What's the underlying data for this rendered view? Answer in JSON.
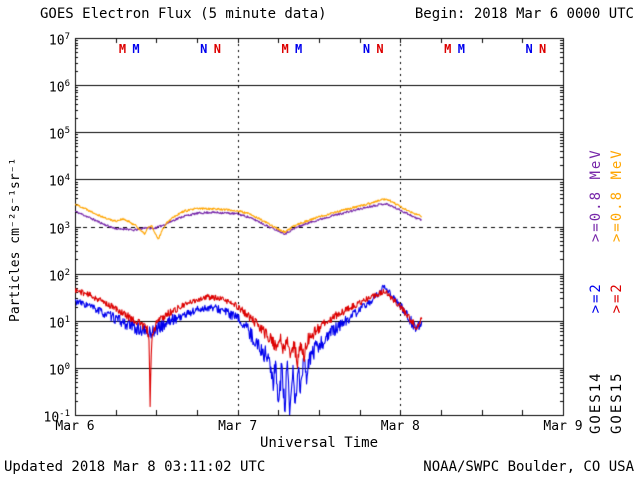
{
  "header": {
    "begin_label": "Begin: 2018 Mar 6 0000 UTC"
  },
  "footer": {
    "updated_label": "Updated 2018 Mar 8 03:11:02 UTC",
    "credit_label": "NOAA/SWPC Boulder, CO USA"
  },
  "legend": {
    "goes14": {
      "sat": "GOES14",
      "e2": ">=2",
      "e08": ">=0.8 MeV",
      "color_sat": "#000000",
      "color_e2": "#0000EE",
      "color_e08": "#7626A9"
    },
    "goes15": {
      "sat": "GOES15",
      "e2": ">=2",
      "e08": ">=0.8 MeV",
      "color_sat": "#000000",
      "color_e2": "#DD0000",
      "color_e08": "#FFA500"
    }
  },
  "chart_data": {
    "type": "line",
    "title": "GOES Electron Flux (5 minute data)",
    "xlabel": "Universal Time",
    "ylabel": "Particles cm⁻²s⁻¹sr⁻¹",
    "xlim_hours": [
      0,
      72
    ],
    "ylog_exp_range": [
      -1,
      7
    ],
    "x_ticks": [
      {
        "label": "Mar 6",
        "hour": 0
      },
      {
        "label": "Mar 7",
        "hour": 24
      },
      {
        "label": "Mar 8",
        "hour": 48
      },
      {
        "label": "Mar 9",
        "hour": 72
      }
    ],
    "y_tick_exponents": [
      7,
      6,
      5,
      4,
      3,
      2,
      1,
      0,
      -1
    ],
    "solid_gridline_exponents": [
      0,
      1,
      2,
      4,
      5,
      6
    ],
    "dashed_threshold_exponent": 3,
    "vertical_gridline_hours": [
      24,
      48
    ],
    "minor_tick_hours": 6,
    "grid": "on",
    "legend_position": "right-rotated",
    "top_markers": [
      {
        "label": "M",
        "hour": 7,
        "color": "#DD0000"
      },
      {
        "label": "M",
        "hour": 9,
        "color": "#0000EE"
      },
      {
        "label": "N",
        "hour": 19,
        "color": "#0000EE"
      },
      {
        "label": "N",
        "hour": 21,
        "color": "#DD0000"
      },
      {
        "label": "M",
        "hour": 31,
        "color": "#DD0000"
      },
      {
        "label": "M",
        "hour": 33,
        "color": "#0000EE"
      },
      {
        "label": "N",
        "hour": 43,
        "color": "#0000EE"
      },
      {
        "label": "N",
        "hour": 45,
        "color": "#DD0000"
      },
      {
        "label": "M",
        "hour": 55,
        "color": "#DD0000"
      },
      {
        "label": "M",
        "hour": 57,
        "color": "#0000EE"
      },
      {
        "label": "N",
        "hour": 67,
        "color": "#0000EE"
      },
      {
        "label": "N",
        "hour": 69,
        "color": "#DD0000"
      }
    ],
    "series": [
      {
        "name": "GOES14 >=0.8 MeV",
        "color": "#7626A9",
        "noise_amp": 0.022,
        "noise_boost": 0,
        "seed": 11,
        "anchors": [
          [
            0,
            2100
          ],
          [
            1.5,
            1700
          ],
          [
            3,
            1350
          ],
          [
            4.5,
            1080
          ],
          [
            5.5,
            950
          ],
          [
            6.5,
            870
          ],
          [
            7.5,
            900
          ],
          [
            8.5,
            830
          ],
          [
            9.5,
            880
          ],
          [
            10.5,
            950
          ],
          [
            11.5,
            900
          ],
          [
            12.5,
            1000
          ],
          [
            13.5,
            1150
          ],
          [
            14.5,
            1350
          ],
          [
            16,
            1650
          ],
          [
            18,
            1900
          ],
          [
            20,
            2000
          ],
          [
            22,
            1950
          ],
          [
            24,
            1850
          ],
          [
            25.5,
            1600
          ],
          [
            27,
            1300
          ],
          [
            28.5,
            1000
          ],
          [
            30,
            820
          ],
          [
            31,
            700
          ],
          [
            32,
            850
          ],
          [
            33,
            1000
          ],
          [
            34.5,
            1200
          ],
          [
            36,
            1400
          ],
          [
            38,
            1700
          ],
          [
            40,
            2000
          ],
          [
            42,
            2350
          ],
          [
            43.5,
            2650
          ],
          [
            45,
            2950
          ],
          [
            45.8,
            3050
          ],
          [
            46.5,
            2800
          ],
          [
            47.5,
            2400
          ],
          [
            48.5,
            2050
          ],
          [
            49.5,
            1750
          ],
          [
            50.3,
            1500
          ],
          [
            51.2,
            1400
          ]
        ]
      },
      {
        "name": "GOES15 >=0.8 MeV",
        "color": "#FFA500",
        "noise_amp": 0.022,
        "noise_boost": 0,
        "seed": 22,
        "anchors": [
          [
            0,
            3000
          ],
          [
            1.5,
            2400
          ],
          [
            3,
            1900
          ],
          [
            4.5,
            1500
          ],
          [
            6,
            1300
          ],
          [
            7,
            1450
          ],
          [
            8,
            1250
          ],
          [
            9,
            1050
          ],
          [
            9.8,
            780
          ],
          [
            10.3,
            700
          ],
          [
            10.8,
            950
          ],
          [
            11.3,
            1050
          ],
          [
            11.8,
            700
          ],
          [
            12.3,
            540
          ],
          [
            12.8,
            800
          ],
          [
            13.5,
            1200
          ],
          [
            14.5,
            1600
          ],
          [
            16,
            2100
          ],
          [
            18,
            2400
          ],
          [
            20,
            2400
          ],
          [
            22,
            2300
          ],
          [
            24,
            2150
          ],
          [
            25.5,
            1900
          ],
          [
            27,
            1500
          ],
          [
            28.5,
            1150
          ],
          [
            30,
            880
          ],
          [
            31,
            760
          ],
          [
            32,
            950
          ],
          [
            33,
            1150
          ],
          [
            34.5,
            1350
          ],
          [
            36,
            1600
          ],
          [
            38,
            1950
          ],
          [
            40,
            2300
          ],
          [
            42,
            2700
          ],
          [
            43.5,
            3100
          ],
          [
            45,
            3600
          ],
          [
            45.8,
            3850
          ],
          [
            46.5,
            3500
          ],
          [
            47.5,
            2900
          ],
          [
            48.5,
            2400
          ],
          [
            49.5,
            2050
          ],
          [
            50.3,
            1800
          ],
          [
            51.2,
            1650
          ]
        ]
      },
      {
        "name": "GOES14 >=2 MeV",
        "color": "#0000EE",
        "noise_amp": 0.07,
        "noise_boost": 1.6,
        "seed": 33,
        "anchors": [
          [
            0,
            26
          ],
          [
            2,
            21
          ],
          [
            4,
            15
          ],
          [
            6,
            11
          ],
          [
            8,
            8
          ],
          [
            10,
            6
          ],
          [
            11,
            5.5
          ],
          [
            12,
            6.5
          ],
          [
            13,
            8
          ],
          [
            14,
            10
          ],
          [
            16,
            13
          ],
          [
            18,
            17
          ],
          [
            19.5,
            19
          ],
          [
            21,
            18
          ],
          [
            22.5,
            15
          ],
          [
            24,
            11
          ],
          [
            25,
            8
          ],
          [
            26,
            5
          ],
          [
            27,
            3
          ],
          [
            28,
            2
          ],
          [
            28.8,
            1.4
          ],
          [
            29.2,
            0.35
          ],
          [
            29.6,
            1.2
          ],
          [
            30.1,
            0.2
          ],
          [
            30.5,
            1.1
          ],
          [
            30.9,
            0.12
          ],
          [
            31.3,
            1.0
          ],
          [
            31.7,
            0.08
          ],
          [
            32.1,
            0.9
          ],
          [
            32.5,
            0.13
          ],
          [
            32.9,
            1.1
          ],
          [
            33.3,
            0.3
          ],
          [
            33.7,
            1.3
          ],
          [
            34.2,
            0.6
          ],
          [
            34.7,
            1.8
          ],
          [
            35.5,
            2.5
          ],
          [
            36.5,
            3.5
          ],
          [
            38,
            6
          ],
          [
            40,
            10
          ],
          [
            42,
            17
          ],
          [
            43.5,
            25
          ],
          [
            45,
            40
          ],
          [
            45.7,
            55
          ],
          [
            46.3,
            42
          ],
          [
            47.3,
            28
          ],
          [
            48.3,
            18
          ],
          [
            49.2,
            12
          ],
          [
            50,
            8
          ],
          [
            50.6,
            7
          ],
          [
            51.2,
            11
          ]
        ]
      },
      {
        "name": "GOES15 >=2 MeV",
        "color": "#DD0000",
        "noise_amp": 0.06,
        "noise_boost": 1.4,
        "seed": 44,
        "anchors": [
          [
            0,
            45
          ],
          [
            2,
            36
          ],
          [
            4,
            26
          ],
          [
            6,
            18
          ],
          [
            8,
            12
          ],
          [
            9.5,
            9
          ],
          [
            10.5,
            7
          ],
          [
            10.9,
            5
          ],
          [
            11.1,
            0.18
          ],
          [
            11.3,
            4
          ],
          [
            12,
            9
          ],
          [
            13,
            12
          ],
          [
            14,
            15
          ],
          [
            16,
            21
          ],
          [
            18,
            28
          ],
          [
            19.5,
            32
          ],
          [
            21,
            30
          ],
          [
            22.5,
            26
          ],
          [
            24,
            20
          ],
          [
            25.5,
            13
          ],
          [
            27,
            8
          ],
          [
            28,
            5.5
          ],
          [
            29,
            4
          ],
          [
            29.8,
            2.5
          ],
          [
            30.3,
            4.5
          ],
          [
            30.8,
            2.2
          ],
          [
            31.3,
            4
          ],
          [
            31.8,
            1.6
          ],
          [
            32.3,
            3.5
          ],
          [
            32.8,
            1.2
          ],
          [
            33.3,
            3
          ],
          [
            33.8,
            1.8
          ],
          [
            34.3,
            4
          ],
          [
            35,
            5
          ],
          [
            36,
            7
          ],
          [
            37,
            9
          ],
          [
            38,
            12
          ],
          [
            40,
            17
          ],
          [
            42,
            24
          ],
          [
            43.5,
            31
          ],
          [
            45,
            38
          ],
          [
            45.7,
            42
          ],
          [
            46.5,
            33
          ],
          [
            47.5,
            24
          ],
          [
            48.5,
            16
          ],
          [
            49.3,
            11
          ],
          [
            50,
            8.5
          ],
          [
            50.6,
            8
          ],
          [
            51.2,
            13
          ]
        ]
      }
    ]
  }
}
